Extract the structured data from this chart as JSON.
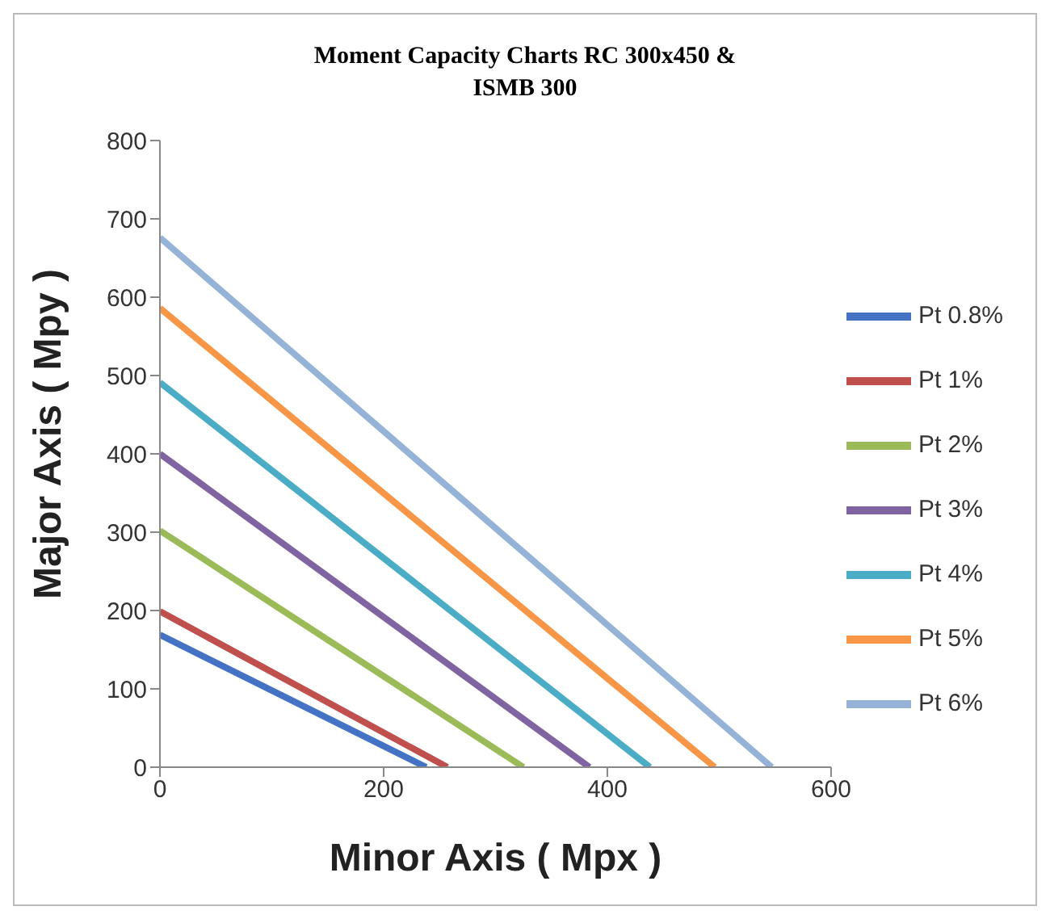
{
  "chart_data": {
    "type": "line",
    "title": "Moment  Capacity  Charts RC 300x450 & ISMB 300",
    "xlabel": "Minor Axis ( Mpx )",
    "ylabel": "Major Axis ( Mpy )",
    "xlim": [
      0,
      600
    ],
    "xticks": [
      0,
      200,
      400,
      600
    ],
    "ylim": [
      0,
      800
    ],
    "yticks": [
      0,
      100,
      200,
      300,
      400,
      500,
      600,
      700,
      800
    ],
    "grid": false,
    "legend": "right",
    "marker": "none",
    "line_style": "solid",
    "series": [
      {
        "name": "Pt 0.8%",
        "color": "#4472c4",
        "x": [
          0,
          238
        ],
        "values": [
          169,
          0
        ]
      },
      {
        "name": "Pt 1%",
        "color": "#c0504d",
        "x": [
          0,
          257
        ],
        "values": [
          199,
          0
        ]
      },
      {
        "name": "Pt 2%",
        "color": "#9bbb59",
        "x": [
          0,
          325
        ],
        "values": [
          302,
          0
        ]
      },
      {
        "name": "Pt 3%",
        "color": "#8064a2",
        "x": [
          0,
          384
        ],
        "values": [
          400,
          0
        ]
      },
      {
        "name": "Pt 4%",
        "color": "#4bacc6",
        "x": [
          0,
          438
        ],
        "values": [
          491,
          0
        ]
      },
      {
        "name": "Pt 5%",
        "color": "#f79646",
        "x": [
          0,
          496
        ],
        "values": [
          586,
          0
        ]
      },
      {
        "name": "Pt 6%",
        "color": "#95b3d7",
        "x": [
          0,
          547
        ],
        "values": [
          676,
          0
        ]
      }
    ]
  }
}
